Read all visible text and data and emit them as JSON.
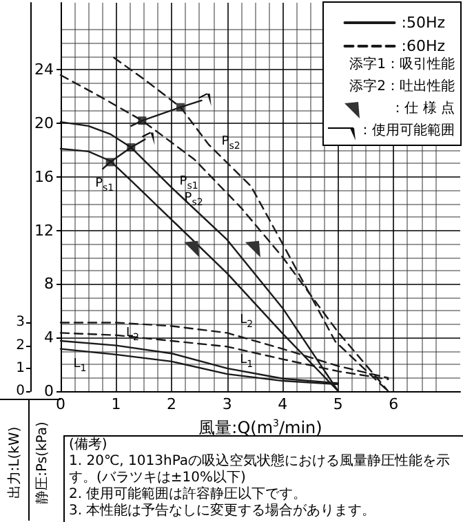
{
  "chart_data": {
    "type": "line",
    "xlabel": "風量:Q(m$^{3}$/min)",
    "ylabel": "静圧:Ps(kPa)",
    "y2label": "出力:L(kW)",
    "xlim": [
      0,
      7.2
    ],
    "xticks": [
      0,
      1,
      2,
      3,
      4,
      5,
      6
    ],
    "ylim": [
      0,
      29
    ],
    "yticks": [
      0,
      4,
      8,
      12,
      16,
      20,
      24
    ],
    "y2lim": [
      0,
      17
    ],
    "y2ticks": [
      0,
      1,
      2,
      3
    ],
    "grid": true,
    "legend": "top right",
    "marker": "none",
    "annotations": [
      "添字1：吸引性能",
      "添字2：吐出性能",
      "：仕 様 点",
      "：使用可能範囲",
      "(備考)",
      "1. 20℃, 1013hPaの吸込空気状態における風量静圧性能を示す。(バラツキは±10%以下)",
      "2. 使用可能範囲は許容静圧以下です。",
      "3. 本性能は予告なしに変更する場合があります。",
      "P$_{s2}$",
      "P$_{s1}$",
      "P$_{s1}$",
      "P$_{s2}$",
      "L$_{2}$",
      "L$_{2}$",
      "L$_{1}$",
      "L$_{1}$"
    ],
    "series": [
      {
        "name": ":50Hz",
        "color": "#1a1a1a",
        "line_style": "solid",
        "x": [
          0,
          0.5,
          0.89,
          1.3,
          2,
          3,
          4,
          5
        ],
        "values": [
          18.1,
          17.9,
          17.2,
          15.6,
          12.8,
          8.8,
          4.3,
          0
        ]
      },
      {
        "color": "#1a1a1a",
        "line_style": "solid",
        "x": [
          0,
          0.5,
          0.89,
          1.27,
          2,
          3,
          4,
          5
        ],
        "values": [
          20.1,
          19.8,
          19.2,
          18.2,
          15.2,
          11.3,
          6.2,
          0
        ]
      },
      {
        "name": ":60Hz",
        "color": "#1a1a1a",
        "line_style": "dashed",
        "x": [
          0,
          0.71,
          1.47,
          2.41,
          3.25,
          4,
          5,
          5.9
        ],
        "values": [
          23.6,
          22.0,
          20.2,
          17.3,
          13.7,
          10.0,
          4.4,
          0
        ]
      },
      {
        "color": "#1a1a1a",
        "line_style": "dashed",
        "x": [
          0.96,
          1.5,
          2.16,
          2.67,
          3.43,
          4,
          4.95,
          5.9
        ],
        "values": [
          24.9,
          23.3,
          21.2,
          18.4,
          15.3,
          11.0,
          3.7,
          0
        ]
      },
      {
        "color": "#1a1a1a",
        "line_style": "solid",
        "axis": "y2",
        "x": [
          0,
          1,
          2,
          3,
          4,
          5
        ],
        "values": [
          1.85,
          1.6,
          1.3,
          0.75,
          0.45,
          0.3
        ]
      },
      {
        "color": "#1a1a1a",
        "line_style": "solid",
        "axis": "y2",
        "x": [
          0,
          1,
          2,
          3,
          4,
          5
        ],
        "values": [
          2.2,
          2.0,
          1.65,
          1.0,
          0.55,
          0.35
        ]
      },
      {
        "color": "#1a1a1a",
        "line_style": "dashed",
        "axis": "y2",
        "x": [
          0,
          1,
          2,
          3,
          4,
          5,
          5.9
        ],
        "values": [
          2.55,
          2.45,
          2.2,
          1.95,
          1.4,
          0.87,
          0.52
        ]
      },
      {
        "color": "#1a1a1a",
        "line_style": "dashed",
        "axis": "y2",
        "x": [
          0,
          1,
          2,
          3,
          4,
          5,
          5.9
        ],
        "values": [
          3.0,
          3.0,
          2.85,
          2.55,
          1.85,
          1.1,
          0.58
        ]
      },
      {
        "color": "#1a1a1a",
        "line_style": "solid",
        "x": [
          0.76,
          0.89,
          1.27,
          1.52
        ],
        "values": [
          16.6,
          17.1,
          18.2,
          18.8
        ]
      },
      {
        "color": "#1a1a1a",
        "line_style": "solid",
        "x": [
          1.27,
          1.47,
          2.16,
          2.54
        ],
        "values": [
          19.8,
          20.2,
          21.2,
          21.7
        ]
      },
      {
        "type": "scatter",
        "marker": "square",
        "color": "#1a1a1a",
        "x": [
          0.89,
          1.27,
          1.47,
          2.16
        ],
        "values": [
          17.1,
          18.2,
          20.2,
          21.2
        ]
      }
    ]
  }
}
